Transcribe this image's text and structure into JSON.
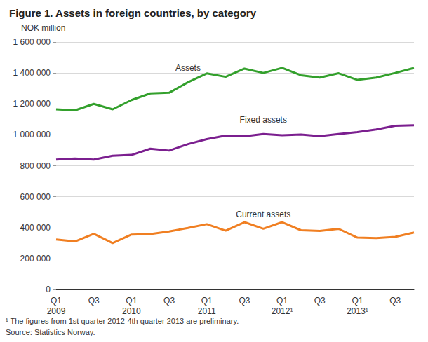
{
  "chart_data": {
    "type": "line",
    "title": "Figure 1. Assets in foreign countries, by category",
    "y_label": "NOK million",
    "footnote": "¹ The figures from 1st quarter 2012-4th quarter 2013 are preliminary.",
    "source": "Source: Statistics Norway.",
    "categories": [
      "Q1\n2009",
      null,
      "Q3",
      null,
      "Q1\n2010",
      null,
      "Q3",
      null,
      "Q1\n2011",
      null,
      "Q3",
      null,
      "Q1\n2012¹",
      null,
      "Q3",
      null,
      "Q1\n2013¹",
      null,
      "Q3",
      null
    ],
    "series": [
      {
        "name": "Assets",
        "color": "#33a02c",
        "values": [
          1165000,
          1158000,
          1200000,
          1165000,
          1225000,
          1268000,
          1272000,
          1340000,
          1397000,
          1375000,
          1428000,
          1400000,
          1433000,
          1385000,
          1370000,
          1398000,
          1355000,
          1370000,
          1400000,
          1432000
        ]
      },
      {
        "name": "Fixed assets",
        "color": "#7b1f8f",
        "values": [
          840000,
          847000,
          840000,
          865000,
          870000,
          910000,
          898000,
          940000,
          972000,
          995000,
          990000,
          1005000,
          997000,
          1002000,
          992000,
          1005000,
          1018000,
          1035000,
          1058000,
          1062000
        ]
      },
      {
        "name": "Current assets",
        "color": "#f07f22",
        "values": [
          323000,
          310000,
          360000,
          300000,
          355000,
          358000,
          375000,
          398000,
          422000,
          380000,
          435000,
          393000,
          435000,
          383000,
          378000,
          392000,
          335000,
          332000,
          340000,
          368000
        ]
      }
    ],
    "ylim": [
      0,
      1600000
    ],
    "yticks": [
      0,
      {
        "value": 200000,
        "label": "200 000"
      },
      {
        "value": 400000,
        "label": "400 000"
      },
      {
        "value": 600000,
        "label": "600 000"
      },
      {
        "value": 800000,
        "label": "800 000"
      },
      {
        "value": 1000000,
        "label": "1 000 000"
      },
      {
        "value": 1200000,
        "label": "1 200 000"
      },
      {
        "value": 1400000,
        "label": "1 400 000"
      },
      {
        "value": 1600000,
        "label": "1 600 000"
      }
    ],
    "grid": true
  }
}
